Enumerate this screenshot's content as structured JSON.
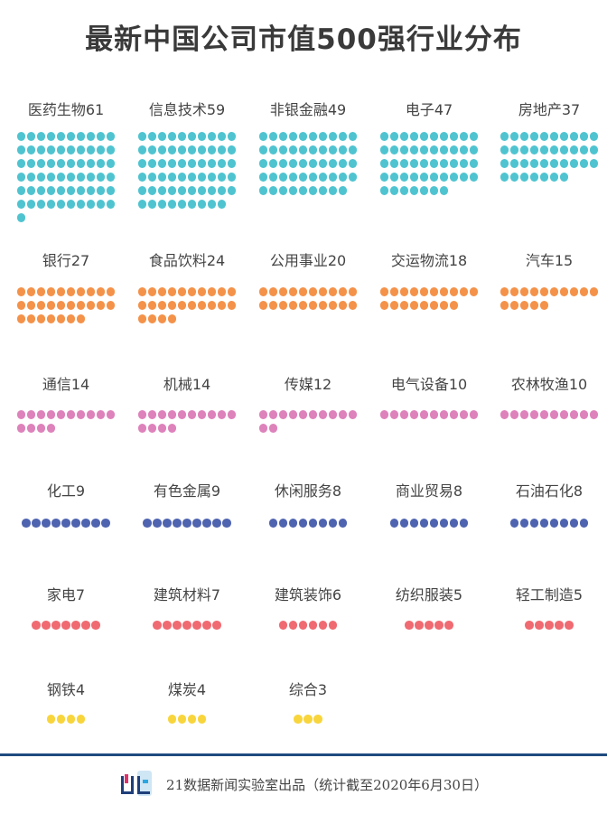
{
  "chart_data": {
    "type": "dot-matrix",
    "title": "最新中国公司市值500强行业分布",
    "colors": {
      "teal": "#4fc4d0",
      "orange": "#f4924a",
      "pink": "#de82bb",
      "blue": "#4f64b0",
      "red": "#f06a72",
      "yellow": "#f8d53c"
    },
    "categories": [
      {
        "name": "医药生物",
        "value": 61,
        "color": "teal"
      },
      {
        "name": "信息技术",
        "value": 59,
        "color": "teal"
      },
      {
        "name": "非银金融",
        "value": 49,
        "color": "teal"
      },
      {
        "name": "电子",
        "value": 47,
        "color": "teal"
      },
      {
        "name": "房地产",
        "value": 37,
        "color": "teal"
      },
      {
        "name": "银行",
        "value": 27,
        "color": "orange"
      },
      {
        "name": "食品饮料",
        "value": 24,
        "color": "orange"
      },
      {
        "name": "公用事业",
        "value": 20,
        "color": "orange"
      },
      {
        "name": "交运物流",
        "value": 18,
        "color": "orange"
      },
      {
        "name": "汽车",
        "value": 15,
        "color": "orange"
      },
      {
        "name": "通信",
        "value": 14,
        "color": "pink"
      },
      {
        "name": "机械",
        "value": 14,
        "color": "pink"
      },
      {
        "name": "传媒",
        "value": 12,
        "color": "pink"
      },
      {
        "name": "电气设备",
        "value": 10,
        "color": "pink"
      },
      {
        "name": "农林牧渔",
        "value": 10,
        "color": "pink"
      },
      {
        "name": "化工",
        "value": 9,
        "color": "blue"
      },
      {
        "name": "有色金属",
        "value": 9,
        "color": "blue"
      },
      {
        "name": "休闲服务",
        "value": 8,
        "color": "blue"
      },
      {
        "name": "商业贸易",
        "value": 8,
        "color": "blue"
      },
      {
        "name": "石油石化",
        "value": 8,
        "color": "blue"
      },
      {
        "name": "家电",
        "value": 7,
        "color": "red"
      },
      {
        "name": "建筑材料",
        "value": 7,
        "color": "red"
      },
      {
        "name": "建筑装饰",
        "value": 6,
        "color": "red"
      },
      {
        "name": "纺织服装",
        "value": 5,
        "color": "red"
      },
      {
        "name": "轻工制造",
        "value": 5,
        "color": "red"
      },
      {
        "name": "钢铁",
        "value": 4,
        "color": "yellow"
      },
      {
        "name": "煤炭",
        "value": 4,
        "color": "yellow"
      },
      {
        "name": "综合",
        "value": 3,
        "color": "yellow"
      }
    ]
  },
  "footer": {
    "text": "21数据新闻实验室出品（统计截至2020年6月30日）",
    "logo": "21数读"
  }
}
